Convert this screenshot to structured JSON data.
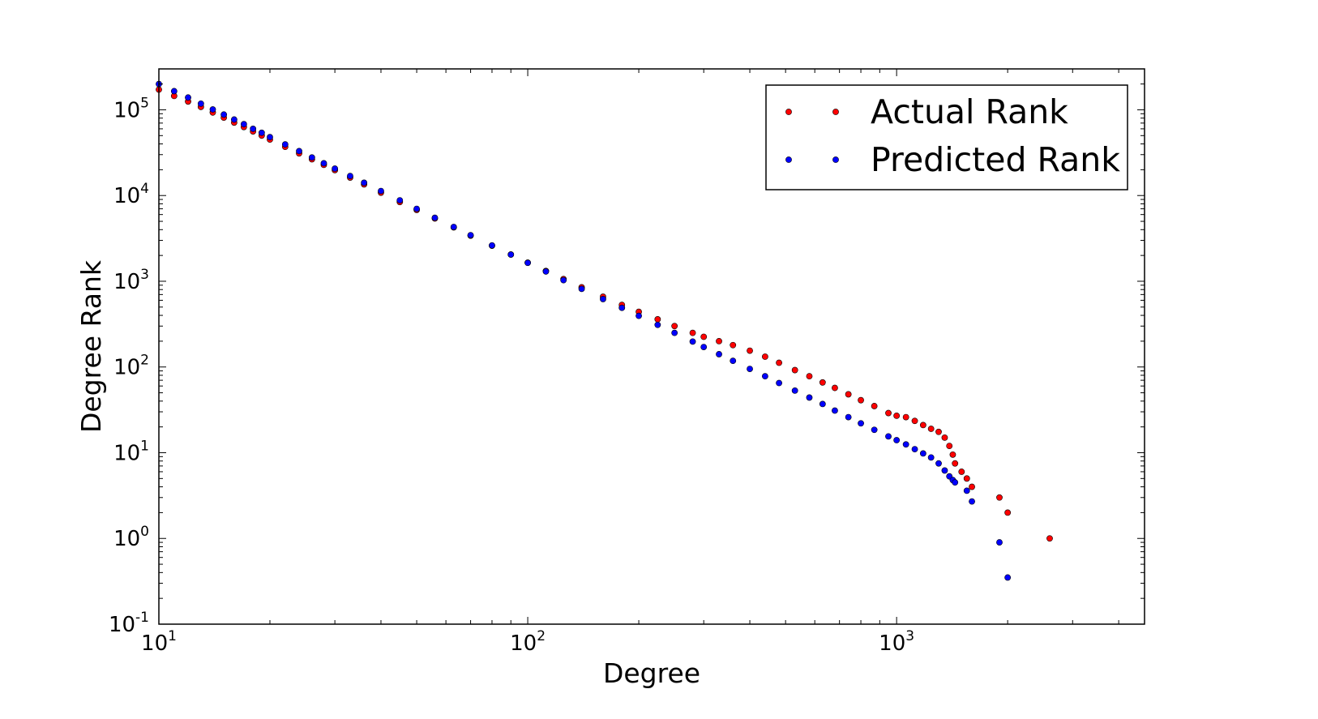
{
  "chart_data": {
    "type": "scatter",
    "title": "",
    "xlabel": "Degree",
    "ylabel": "Degree Rank",
    "xscale": "log",
    "yscale": "log",
    "xlim": [
      10,
      4700
    ],
    "ylim": [
      0.1,
      300000
    ],
    "grid": false,
    "legend_position": "top-right",
    "x_ticks": [
      {
        "base": "10",
        "exp": "1",
        "value": 10
      },
      {
        "base": "10",
        "exp": "2",
        "value": 100
      },
      {
        "base": "10",
        "exp": "3",
        "value": 1000
      }
    ],
    "y_ticks": [
      {
        "base": "10",
        "exp": "-1",
        "value": 0.1
      },
      {
        "base": "10",
        "exp": "0",
        "value": 1
      },
      {
        "base": "10",
        "exp": "1",
        "value": 10
      },
      {
        "base": "10",
        "exp": "2",
        "value": 100
      },
      {
        "base": "10",
        "exp": "3",
        "value": 1000
      },
      {
        "base": "10",
        "exp": "4",
        "value": 10000
      },
      {
        "base": "10",
        "exp": "5",
        "value": 100000
      }
    ],
    "series": [
      {
        "name": "Actual Rank",
        "color": "#ff0000",
        "points": [
          [
            10,
            172000
          ],
          [
            11,
            145000
          ],
          [
            12,
            125000
          ],
          [
            13,
            108000
          ],
          [
            14,
            93000
          ],
          [
            15,
            81000
          ],
          [
            16,
            71000
          ],
          [
            17,
            63000
          ],
          [
            18,
            56000
          ],
          [
            19,
            50000
          ],
          [
            20,
            45000
          ],
          [
            22,
            37000
          ],
          [
            24,
            31000
          ],
          [
            26,
            26500
          ],
          [
            28,
            22800
          ],
          [
            30,
            19800
          ],
          [
            33,
            16200
          ],
          [
            36,
            13500
          ],
          [
            40,
            10800
          ],
          [
            45,
            8400
          ],
          [
            50,
            6800
          ],
          [
            56,
            5400
          ],
          [
            63,
            4250
          ],
          [
            70,
            3400
          ],
          [
            80,
            2600
          ],
          [
            90,
            2050
          ],
          [
            100,
            1650
          ],
          [
            112,
            1320
          ],
          [
            125,
            1060
          ],
          [
            140,
            850
          ],
          [
            160,
            660
          ],
          [
            180,
            530
          ],
          [
            200,
            440
          ],
          [
            225,
            360
          ],
          [
            250,
            300
          ],
          [
            280,
            250
          ],
          [
            300,
            225
          ],
          [
            330,
            200
          ],
          [
            360,
            180
          ],
          [
            400,
            155
          ],
          [
            440,
            132
          ],
          [
            480,
            112
          ],
          [
            530,
            92
          ],
          [
            580,
            78
          ],
          [
            630,
            66
          ],
          [
            680,
            57
          ],
          [
            740,
            48
          ],
          [
            800,
            41
          ],
          [
            870,
            35
          ],
          [
            950,
            29
          ],
          [
            1000,
            27
          ],
          [
            1060,
            26
          ],
          [
            1120,
            23.5
          ],
          [
            1180,
            21
          ],
          [
            1240,
            19
          ],
          [
            1300,
            17.5
          ],
          [
            1350,
            15
          ],
          [
            1390,
            12
          ],
          [
            1420,
            9.5
          ],
          [
            1440,
            7.5
          ],
          [
            1500,
            6
          ],
          [
            1550,
            5
          ],
          [
            1600,
            4
          ],
          [
            1900,
            3
          ],
          [
            2000,
            2
          ],
          [
            2600,
            1
          ]
        ]
      },
      {
        "name": "Predicted Rank",
        "color": "#0000ff",
        "points": [
          [
            10,
            200000
          ],
          [
            11,
            165000
          ],
          [
            12,
            139000
          ],
          [
            13,
            118000
          ],
          [
            14,
            101000
          ],
          [
            15,
            88000
          ],
          [
            16,
            77000
          ],
          [
            17,
            68000
          ],
          [
            18,
            60000
          ],
          [
            19,
            54000
          ],
          [
            20,
            48000
          ],
          [
            22,
            39500
          ],
          [
            24,
            33000
          ],
          [
            26,
            27800
          ],
          [
            28,
            23800
          ],
          [
            30,
            20600
          ],
          [
            33,
            16900
          ],
          [
            36,
            14100
          ],
          [
            40,
            11300
          ],
          [
            45,
            8800
          ],
          [
            50,
            7000
          ],
          [
            56,
            5500
          ],
          [
            63,
            4300
          ],
          [
            70,
            3450
          ],
          [
            80,
            2620
          ],
          [
            90,
            2050
          ],
          [
            100,
            1640
          ],
          [
            112,
            1300
          ],
          [
            125,
            1030
          ],
          [
            140,
            815
          ],
          [
            160,
            620
          ],
          [
            180,
            490
          ],
          [
            200,
            395
          ],
          [
            225,
            310
          ],
          [
            250,
            250
          ],
          [
            280,
            198
          ],
          [
            300,
            171
          ],
          [
            330,
            141
          ],
          [
            360,
            118
          ],
          [
            400,
            95
          ],
          [
            440,
            78
          ],
          [
            480,
            65
          ],
          [
            530,
            53
          ],
          [
            580,
            44
          ],
          [
            630,
            37
          ],
          [
            680,
            31
          ],
          [
            740,
            26
          ],
          [
            800,
            22
          ],
          [
            870,
            18.5
          ],
          [
            950,
            15.5
          ],
          [
            1000,
            14
          ],
          [
            1060,
            12.5
          ],
          [
            1120,
            11
          ],
          [
            1180,
            9.8
          ],
          [
            1240,
            8.8
          ],
          [
            1300,
            7.5
          ],
          [
            1350,
            6.2
          ],
          [
            1390,
            5.3
          ],
          [
            1420,
            4.8
          ],
          [
            1440,
            4.5
          ],
          [
            1550,
            3.6
          ],
          [
            1600,
            2.7
          ],
          [
            1900,
            0.9
          ],
          [
            2000,
            0.35
          ]
        ]
      }
    ]
  }
}
